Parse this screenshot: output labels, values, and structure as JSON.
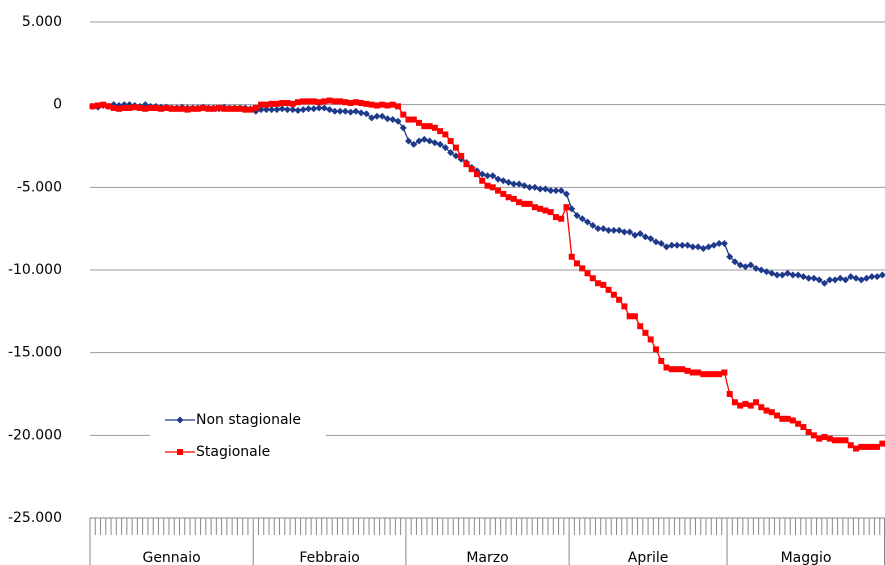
{
  "chart_data": {
    "type": "line",
    "categories": [
      "Gennaio",
      "Febbraio",
      "Marzo",
      "Aprile",
      "Maggio"
    ],
    "ylim": [
      -25000,
      5000
    ],
    "yticks": [
      {
        "value": 5000,
        "label": "5.000"
      },
      0,
      {
        "value": -5000,
        "label": "-5.000"
      },
      {
        "value": -10000,
        "label": "-10.000"
      },
      {
        "value": -15000,
        "label": "-15.000"
      },
      {
        "value": -20000,
        "label": "-20.000"
      },
      {
        "value": -25000,
        "label": "-25.000"
      }
    ],
    "grid": true,
    "legend": "lower-left",
    "series": [
      {
        "name": "Non stagionale",
        "color": "#1f3a8a",
        "marker": "diamond",
        "values": [
          [
            -100,
            -150,
            -50,
            -100,
            0,
            -50,
            0,
            0,
            -50,
            -100,
            0,
            -100,
            -100,
            -150,
            -150,
            -200,
            -200,
            -150,
            -200,
            -200,
            -200,
            -150,
            -200,
            -200,
            -250,
            -150,
            -200,
            -200,
            -200,
            -200,
            -250
          ],
          [
            -400,
            -300,
            -300,
            -300,
            -300,
            -250,
            -300,
            -300,
            -350,
            -300,
            -250,
            -250,
            -200,
            -200,
            -300,
            -400,
            -400,
            -400,
            -450,
            -400,
            -500,
            -550,
            -800,
            -700,
            -700,
            -850,
            -900,
            -1000,
            -1400
          ],
          [
            -2200,
            -2400,
            -2200,
            -2100,
            -2200,
            -2300,
            -2400,
            -2600,
            -2900,
            -3100,
            -3300,
            -3500,
            -3800,
            -4000,
            -4200,
            -4300,
            -4300,
            -4500,
            -4600,
            -4700,
            -4800,
            -4800,
            -4900,
            -5000,
            -5000,
            -5100,
            -5100,
            -5200,
            -5200,
            -5200,
            -5400
          ],
          [
            -6300,
            -6700,
            -6900,
            -7100,
            -7300,
            -7500,
            -7500,
            -7600,
            -7600,
            -7600,
            -7700,
            -7700,
            -7900,
            -7800,
            -8000,
            -8100,
            -8300,
            -8400,
            -8600,
            -8500,
            -8500,
            -8500,
            -8500,
            -8600,
            -8600,
            -8700,
            -8600,
            -8500,
            -8400,
            -8400
          ],
          [
            -9200,
            -9500,
            -9700,
            -9800,
            -9700,
            -9900,
            -10000,
            -10100,
            -10200,
            -10300,
            -10300,
            -10200,
            -10300,
            -10300,
            -10400,
            -10500,
            -10500,
            -10600,
            -10800,
            -10600,
            -10600,
            -10500,
            -10600,
            -10400,
            -10500,
            -10600,
            -10500,
            -10400,
            -10400,
            -10300
          ]
        ]
      },
      {
        "name": "Stagionale",
        "color": "#ff0000",
        "marker": "square",
        "values": [
          [
            -100,
            -50,
            0,
            -100,
            -200,
            -250,
            -200,
            -200,
            -150,
            -200,
            -250,
            -200,
            -200,
            -250,
            -200,
            -250,
            -250,
            -250,
            -300,
            -250,
            -250,
            -200,
            -250,
            -250,
            -200,
            -250,
            -250,
            -250,
            -250,
            -300,
            -300
          ],
          [
            -200,
            0,
            0,
            50,
            50,
            100,
            100,
            50,
            150,
            200,
            200,
            200,
            150,
            200,
            250,
            200,
            200,
            150,
            100,
            150,
            100,
            50,
            0,
            -50,
            0,
            -50,
            0,
            -100,
            -600
          ],
          [
            -900,
            -900,
            -1100,
            -1300,
            -1300,
            -1400,
            -1600,
            -1800,
            -2200,
            -2600,
            -3100,
            -3600,
            -3900,
            -4200,
            -4600,
            -4900,
            -5000,
            -5200,
            -5400,
            -5600,
            -5700,
            -5900,
            -6000,
            -6000,
            -6200,
            -6300,
            -6400,
            -6500,
            -6800,
            -6900,
            -6200
          ],
          [
            -9200,
            -9600,
            -9900,
            -10200,
            -10500,
            -10800,
            -10900,
            -11200,
            -11500,
            -11800,
            -12200,
            -12800,
            -12800,
            -13400,
            -13800,
            -14200,
            -14800,
            -15500,
            -15900,
            -16000,
            -16000,
            -16000,
            -16100,
            -16200,
            -16200,
            -16300,
            -16300,
            -16300,
            -16300,
            -16200
          ],
          [
            -17500,
            -18000,
            -18200,
            -18100,
            -18200,
            -18000,
            -18300,
            -18500,
            -18600,
            -18800,
            -19000,
            -19000,
            -19100,
            -19300,
            -19500,
            -19800,
            -20000,
            -20200,
            -20100,
            -20200,
            -20300,
            -20300,
            -20300,
            -20600,
            -20800,
            -20700,
            -20700,
            -20700,
            -20700,
            -20500
          ]
        ]
      }
    ]
  }
}
